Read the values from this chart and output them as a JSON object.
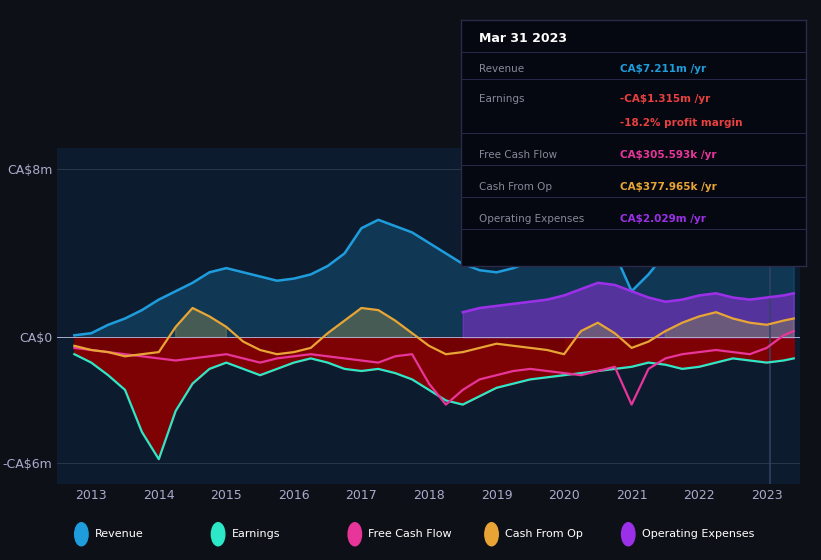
{
  "bg_color": "#0d1117",
  "plot_bg_color": "#0d1b2e",
  "ylim": [
    -7000000,
    9000000
  ],
  "xlim": [
    2012.5,
    2023.5
  ],
  "yticks": [
    -6000000,
    0,
    8000000
  ],
  "ytick_labels": [
    "-CA$6m",
    "CA$0",
    "CA$8m"
  ],
  "xtick_years": [
    2013,
    2014,
    2015,
    2016,
    2017,
    2018,
    2019,
    2020,
    2021,
    2022,
    2023
  ],
  "colors": {
    "revenue": "#1e9cdb",
    "earnings": "#2de8c8",
    "free_cash_flow": "#e8359a",
    "cash_from_op": "#e8a535",
    "operating_expenses": "#9b30e8"
  },
  "revenue": [
    [
      2012.75,
      100000
    ],
    [
      2013.0,
      200000
    ],
    [
      2013.25,
      600000
    ],
    [
      2013.5,
      900000
    ],
    [
      2013.75,
      1300000
    ],
    [
      2014.0,
      1800000
    ],
    [
      2014.25,
      2200000
    ],
    [
      2014.5,
      2600000
    ],
    [
      2014.75,
      3100000
    ],
    [
      2015.0,
      3300000
    ],
    [
      2015.25,
      3100000
    ],
    [
      2015.5,
      2900000
    ],
    [
      2015.75,
      2700000
    ],
    [
      2016.0,
      2800000
    ],
    [
      2016.25,
      3000000
    ],
    [
      2016.5,
      3400000
    ],
    [
      2016.75,
      4000000
    ],
    [
      2017.0,
      5200000
    ],
    [
      2017.25,
      5600000
    ],
    [
      2017.5,
      5300000
    ],
    [
      2017.75,
      5000000
    ],
    [
      2018.0,
      4500000
    ],
    [
      2018.25,
      4000000
    ],
    [
      2018.5,
      3500000
    ],
    [
      2018.75,
      3200000
    ],
    [
      2019.0,
      3100000
    ],
    [
      2019.25,
      3300000
    ],
    [
      2019.5,
      3600000
    ],
    [
      2019.75,
      3900000
    ],
    [
      2020.0,
      4200000
    ],
    [
      2020.25,
      4500000
    ],
    [
      2020.5,
      4300000
    ],
    [
      2020.75,
      4000000
    ],
    [
      2021.0,
      2200000
    ],
    [
      2021.25,
      3000000
    ],
    [
      2021.5,
      4000000
    ],
    [
      2021.75,
      5200000
    ],
    [
      2022.0,
      6000000
    ],
    [
      2022.25,
      6200000
    ],
    [
      2022.5,
      6100000
    ],
    [
      2022.75,
      5800000
    ],
    [
      2023.0,
      7000000
    ],
    [
      2023.25,
      7800000
    ],
    [
      2023.4,
      8200000
    ]
  ],
  "earnings": [
    [
      2012.75,
      -800000
    ],
    [
      2013.0,
      -1200000
    ],
    [
      2013.25,
      -1800000
    ],
    [
      2013.5,
      -2500000
    ],
    [
      2013.75,
      -4500000
    ],
    [
      2014.0,
      -5800000
    ],
    [
      2014.25,
      -3500000
    ],
    [
      2014.5,
      -2200000
    ],
    [
      2014.75,
      -1500000
    ],
    [
      2015.0,
      -1200000
    ],
    [
      2015.25,
      -1500000
    ],
    [
      2015.5,
      -1800000
    ],
    [
      2015.75,
      -1500000
    ],
    [
      2016.0,
      -1200000
    ],
    [
      2016.25,
      -1000000
    ],
    [
      2016.5,
      -1200000
    ],
    [
      2016.75,
      -1500000
    ],
    [
      2017.0,
      -1600000
    ],
    [
      2017.25,
      -1500000
    ],
    [
      2017.5,
      -1700000
    ],
    [
      2017.75,
      -2000000
    ],
    [
      2018.0,
      -2500000
    ],
    [
      2018.25,
      -3000000
    ],
    [
      2018.5,
      -3200000
    ],
    [
      2018.75,
      -2800000
    ],
    [
      2019.0,
      -2400000
    ],
    [
      2019.25,
      -2200000
    ],
    [
      2019.5,
      -2000000
    ],
    [
      2019.75,
      -1900000
    ],
    [
      2020.0,
      -1800000
    ],
    [
      2020.25,
      -1700000
    ],
    [
      2020.5,
      -1600000
    ],
    [
      2020.75,
      -1500000
    ],
    [
      2021.0,
      -1400000
    ],
    [
      2021.25,
      -1200000
    ],
    [
      2021.5,
      -1300000
    ],
    [
      2021.75,
      -1500000
    ],
    [
      2022.0,
      -1400000
    ],
    [
      2022.25,
      -1200000
    ],
    [
      2022.5,
      -1000000
    ],
    [
      2022.75,
      -1100000
    ],
    [
      2023.0,
      -1200000
    ],
    [
      2023.25,
      -1100000
    ],
    [
      2023.4,
      -1000000
    ]
  ],
  "free_cash_flow": [
    [
      2012.75,
      -500000
    ],
    [
      2013.0,
      -600000
    ],
    [
      2013.25,
      -700000
    ],
    [
      2013.5,
      -800000
    ],
    [
      2013.75,
      -900000
    ],
    [
      2014.0,
      -1000000
    ],
    [
      2014.25,
      -1100000
    ],
    [
      2014.5,
      -1000000
    ],
    [
      2014.75,
      -900000
    ],
    [
      2015.0,
      -800000
    ],
    [
      2015.25,
      -1000000
    ],
    [
      2015.5,
      -1200000
    ],
    [
      2015.75,
      -1000000
    ],
    [
      2016.0,
      -900000
    ],
    [
      2016.25,
      -800000
    ],
    [
      2016.5,
      -900000
    ],
    [
      2016.75,
      -1000000
    ],
    [
      2017.0,
      -1100000
    ],
    [
      2017.25,
      -1200000
    ],
    [
      2017.5,
      -900000
    ],
    [
      2017.75,
      -800000
    ],
    [
      2018.0,
      -2200000
    ],
    [
      2018.25,
      -3200000
    ],
    [
      2018.5,
      -2500000
    ],
    [
      2018.75,
      -2000000
    ],
    [
      2019.0,
      -1800000
    ],
    [
      2019.25,
      -1600000
    ],
    [
      2019.5,
      -1500000
    ],
    [
      2019.75,
      -1600000
    ],
    [
      2020.0,
      -1700000
    ],
    [
      2020.25,
      -1800000
    ],
    [
      2020.5,
      -1600000
    ],
    [
      2020.75,
      -1400000
    ],
    [
      2021.0,
      -3200000
    ],
    [
      2021.25,
      -1500000
    ],
    [
      2021.5,
      -1000000
    ],
    [
      2021.75,
      -800000
    ],
    [
      2022.0,
      -700000
    ],
    [
      2022.25,
      -600000
    ],
    [
      2022.5,
      -700000
    ],
    [
      2022.75,
      -800000
    ],
    [
      2023.0,
      -500000
    ],
    [
      2023.25,
      100000
    ],
    [
      2023.4,
      300000
    ]
  ],
  "cash_from_op": [
    [
      2012.75,
      -400000
    ],
    [
      2013.0,
      -600000
    ],
    [
      2013.25,
      -700000
    ],
    [
      2013.5,
      -900000
    ],
    [
      2013.75,
      -800000
    ],
    [
      2014.0,
      -700000
    ],
    [
      2014.25,
      500000
    ],
    [
      2014.5,
      1400000
    ],
    [
      2014.75,
      1000000
    ],
    [
      2015.0,
      500000
    ],
    [
      2015.25,
      -200000
    ],
    [
      2015.5,
      -600000
    ],
    [
      2015.75,
      -800000
    ],
    [
      2016.0,
      -700000
    ],
    [
      2016.25,
      -500000
    ],
    [
      2016.5,
      200000
    ],
    [
      2016.75,
      800000
    ],
    [
      2017.0,
      1400000
    ],
    [
      2017.25,
      1300000
    ],
    [
      2017.5,
      800000
    ],
    [
      2017.75,
      200000
    ],
    [
      2018.0,
      -400000
    ],
    [
      2018.25,
      -800000
    ],
    [
      2018.5,
      -700000
    ],
    [
      2018.75,
      -500000
    ],
    [
      2019.0,
      -300000
    ],
    [
      2019.25,
      -400000
    ],
    [
      2019.5,
      -500000
    ],
    [
      2019.75,
      -600000
    ],
    [
      2020.0,
      -800000
    ],
    [
      2020.25,
      300000
    ],
    [
      2020.5,
      700000
    ],
    [
      2020.75,
      200000
    ],
    [
      2021.0,
      -500000
    ],
    [
      2021.25,
      -200000
    ],
    [
      2021.5,
      300000
    ],
    [
      2021.75,
      700000
    ],
    [
      2022.0,
      1000000
    ],
    [
      2022.25,
      1200000
    ],
    [
      2022.5,
      900000
    ],
    [
      2022.75,
      700000
    ],
    [
      2023.0,
      600000
    ],
    [
      2023.25,
      800000
    ],
    [
      2023.4,
      900000
    ]
  ],
  "operating_expenses": [
    [
      2018.5,
      1200000
    ],
    [
      2018.75,
      1400000
    ],
    [
      2019.0,
      1500000
    ],
    [
      2019.25,
      1600000
    ],
    [
      2019.5,
      1700000
    ],
    [
      2019.75,
      1800000
    ],
    [
      2020.0,
      2000000
    ],
    [
      2020.25,
      2300000
    ],
    [
      2020.5,
      2600000
    ],
    [
      2020.75,
      2500000
    ],
    [
      2021.0,
      2200000
    ],
    [
      2021.25,
      1900000
    ],
    [
      2021.5,
      1700000
    ],
    [
      2021.75,
      1800000
    ],
    [
      2022.0,
      2000000
    ],
    [
      2022.25,
      2100000
    ],
    [
      2022.5,
      1900000
    ],
    [
      2022.75,
      1800000
    ],
    [
      2023.0,
      1900000
    ],
    [
      2023.25,
      2000000
    ],
    [
      2023.4,
      2100000
    ]
  ],
  "tooltip_title": "Mar 31 2023",
  "tooltip_rows": [
    {
      "label": "Revenue",
      "value": "CA$7.211m /yr",
      "value_color": "#1e9cdb"
    },
    {
      "label": "Earnings",
      "value": "-CA$1.315m /yr",
      "value_color": "#e84040"
    },
    {
      "label": "",
      "value": "-18.2% profit margin",
      "value_color": "#e84040"
    },
    {
      "label": "Free Cash Flow",
      "value": "CA$305.593k /yr",
      "value_color": "#e8359a"
    },
    {
      "label": "Cash From Op",
      "value": "CA$377.965k /yr",
      "value_color": "#e8a535"
    },
    {
      "label": "Operating Expenses",
      "value": "CA$2.029m /yr",
      "value_color": "#9b30e8"
    }
  ],
  "legend_items": [
    {
      "label": "Revenue",
      "color": "#1e9cdb"
    },
    {
      "label": "Earnings",
      "color": "#2de8c8"
    },
    {
      "label": "Free Cash Flow",
      "color": "#e8359a"
    },
    {
      "label": "Cash From Op",
      "color": "#e8a535"
    },
    {
      "label": "Operating Expenses",
      "color": "#9b30e8"
    }
  ]
}
